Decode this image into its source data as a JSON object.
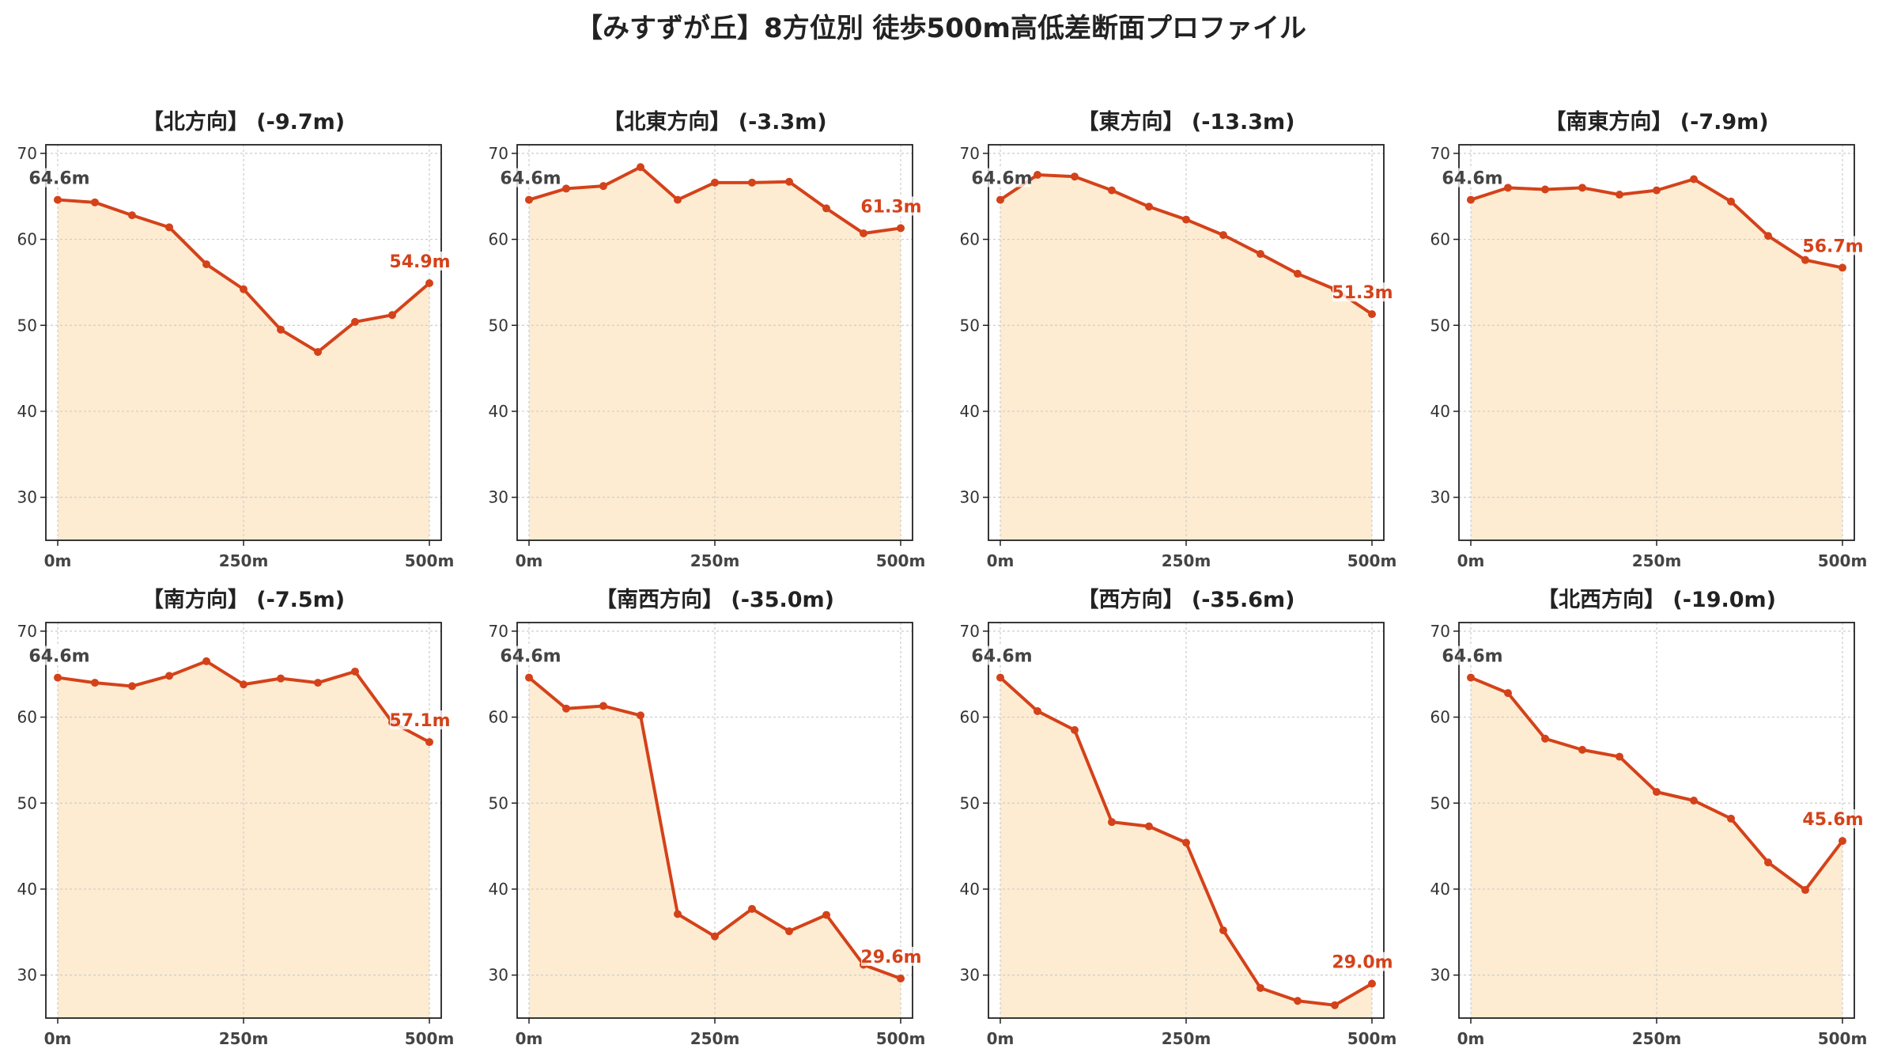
{
  "title": "【みすずが丘】8方位別 徒歩500m高低差断面プロファイル",
  "colors": {
    "line": "#d4421a",
    "fill": "#fdecd2",
    "grid": "#cccccc",
    "axis": "#222222"
  },
  "chart_data": [
    {
      "type": "area",
      "title": "【北方向】 (-9.7m)",
      "x": [
        0,
        50,
        100,
        150,
        200,
        250,
        300,
        350,
        400,
        450,
        500
      ],
      "y": [
        64.6,
        64.3,
        62.8,
        61.4,
        57.1,
        54.2,
        49.5,
        46.9,
        50.4,
        51.2,
        54.9
      ],
      "xticks": [
        "0m",
        "250m",
        "500m"
      ],
      "yticks": [
        30,
        40,
        50,
        60,
        70
      ],
      "ylim": [
        25,
        71
      ],
      "start_label": "64.6m",
      "end_label": "54.9m",
      "grid": true
    },
    {
      "type": "area",
      "title": "【北東方向】 (-3.3m)",
      "x": [
        0,
        50,
        100,
        150,
        200,
        250,
        300,
        350,
        400,
        450,
        500
      ],
      "y": [
        64.6,
        65.9,
        66.2,
        68.4,
        64.6,
        66.6,
        66.6,
        66.7,
        63.6,
        60.7,
        61.3
      ],
      "xticks": [
        "0m",
        "250m",
        "500m"
      ],
      "yticks": [
        30,
        40,
        50,
        60,
        70
      ],
      "ylim": [
        25,
        71
      ],
      "start_label": "64.6m",
      "end_label": "61.3m",
      "grid": true
    },
    {
      "type": "area",
      "title": "【東方向】 (-13.3m)",
      "x": [
        0,
        50,
        100,
        150,
        200,
        250,
        300,
        350,
        400,
        450,
        500
      ],
      "y": [
        64.6,
        67.5,
        67.3,
        65.7,
        63.8,
        62.3,
        60.5,
        58.3,
        56.0,
        54.2,
        51.3
      ],
      "xticks": [
        "0m",
        "250m",
        "500m"
      ],
      "yticks": [
        30,
        40,
        50,
        60,
        70
      ],
      "ylim": [
        25,
        71
      ],
      "start_label": "64.6m",
      "end_label": "51.3m",
      "grid": true
    },
    {
      "type": "area",
      "title": "【南東方向】 (-7.9m)",
      "x": [
        0,
        50,
        100,
        150,
        200,
        250,
        300,
        350,
        400,
        450,
        500
      ],
      "y": [
        64.6,
        66.0,
        65.8,
        66.0,
        65.2,
        65.7,
        67.0,
        64.4,
        60.4,
        57.6,
        56.7
      ],
      "xticks": [
        "0m",
        "250m",
        "500m"
      ],
      "yticks": [
        30,
        40,
        50,
        60,
        70
      ],
      "ylim": [
        25,
        71
      ],
      "start_label": "64.6m",
      "end_label": "56.7m",
      "grid": true
    },
    {
      "type": "area",
      "title": "【南方向】 (-7.5m)",
      "x": [
        0,
        50,
        100,
        150,
        200,
        250,
        300,
        350,
        400,
        450,
        500
      ],
      "y": [
        64.6,
        64.0,
        63.6,
        64.8,
        66.5,
        63.8,
        64.5,
        64.0,
        65.3,
        59.4,
        57.1
      ],
      "xticks": [
        "0m",
        "250m",
        "500m"
      ],
      "yticks": [
        30,
        40,
        50,
        60,
        70
      ],
      "ylim": [
        25,
        71
      ],
      "start_label": "64.6m",
      "end_label": "57.1m",
      "grid": true
    },
    {
      "type": "area",
      "title": "【南西方向】 (-35.0m)",
      "x": [
        0,
        50,
        100,
        150,
        200,
        250,
        300,
        350,
        400,
        450,
        500
      ],
      "y": [
        64.6,
        61.0,
        61.3,
        60.2,
        37.1,
        34.5,
        37.7,
        35.1,
        37.0,
        31.2,
        29.6
      ],
      "xticks": [
        "0m",
        "250m",
        "500m"
      ],
      "yticks": [
        30,
        40,
        50,
        60,
        70
      ],
      "ylim": [
        25,
        71
      ],
      "start_label": "64.6m",
      "end_label": "29.6m",
      "grid": true
    },
    {
      "type": "area",
      "title": "【西方向】 (-35.6m)",
      "x": [
        0,
        50,
        100,
        150,
        200,
        250,
        300,
        350,
        400,
        450,
        500
      ],
      "y": [
        64.6,
        60.7,
        58.5,
        47.8,
        47.3,
        45.4,
        35.2,
        28.5,
        27.0,
        26.5,
        29.0
      ],
      "xticks": [
        "0m",
        "250m",
        "500m"
      ],
      "yticks": [
        30,
        40,
        50,
        60,
        70
      ],
      "ylim": [
        25,
        71
      ],
      "start_label": "64.6m",
      "end_label": "29.0m",
      "grid": true
    },
    {
      "type": "area",
      "title": "【北西方向】 (-19.0m)",
      "x": [
        0,
        50,
        100,
        150,
        200,
        250,
        300,
        350,
        400,
        450,
        500
      ],
      "y": [
        64.6,
        62.8,
        57.5,
        56.2,
        55.4,
        51.3,
        50.3,
        48.2,
        43.1,
        39.9,
        45.6
      ],
      "xticks": [
        "0m",
        "250m",
        "500m"
      ],
      "yticks": [
        30,
        40,
        50,
        60,
        70
      ],
      "ylim": [
        25,
        71
      ],
      "start_label": "64.6m",
      "end_label": "45.6m",
      "grid": true
    }
  ]
}
